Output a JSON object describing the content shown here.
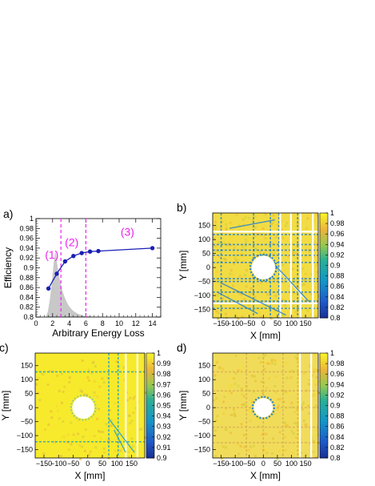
{
  "colors": {
    "region": "#ee22ee",
    "series": "#1a1fb5",
    "hist": "#c8c8c8",
    "heat_high": "#f7ef2a",
    "heat_low": "#1e3ca0"
  },
  "chart_data": [
    {
      "panel": "a)",
      "type": "line",
      "xlabel": "Arbitrary Energy Loss",
      "ylabel": "Efficiency",
      "xlim": [
        0,
        15
      ],
      "ylim": [
        0.8,
        1.0
      ],
      "xticks": [
        "0",
        "2",
        "4",
        "6",
        "8",
        "10",
        "12",
        "14"
      ],
      "yticks": [
        "0.8",
        "0.82",
        "0.84",
        "0.86",
        "0.88",
        "0.9",
        "0.92",
        "0.94",
        "0.96",
        "0.98",
        "1"
      ],
      "x": [
        1.5,
        2.5,
        3.5,
        4.5,
        5.5,
        6.5,
        7.5,
        14
      ],
      "y": [
        0.858,
        0.888,
        0.913,
        0.924,
        0.93,
        0.933,
        0.934,
        0.94
      ],
      "region_lines_x": [
        3.0,
        6.0
      ],
      "region_labels": [
        {
          "text": "(1)",
          "x": 1.9,
          "y": 0.919
        },
        {
          "text": "(2)",
          "x": 4.3,
          "y": 0.944
        },
        {
          "text": "(3)",
          "x": 11.0,
          "y": 0.965
        }
      ],
      "histogram": {
        "peak_x": 2.3,
        "peak_y": 0.943,
        "start_x": 1.2
      }
    },
    {
      "panel": "b)",
      "type": "heatmap",
      "xlabel": "X [mm]",
      "ylabel": "Y [mm]",
      "xticks": [
        "−150",
        "−100",
        "−50",
        "0",
        "50",
        "100",
        "150"
      ],
      "yticks": [
        "−150",
        "−100",
        "−50",
        "0",
        "50",
        "100",
        "150"
      ],
      "scale_ticks": [
        "0.8",
        "0.82",
        "0.84",
        "0.86",
        "0.88",
        "0.9",
        "0.92",
        "0.94",
        "0.96",
        "0.98",
        "1"
      ],
      "zlim": [
        0.8,
        1.0
      ],
      "hole_center": [
        0,
        0
      ],
      "hole_radius_mm": 42
    },
    {
      "panel": "c)",
      "type": "heatmap",
      "xlabel": "X [mm]",
      "ylabel": "Y [mm]",
      "xticks": [
        "−150",
        "−100",
        "−50",
        "0",
        "50",
        "100",
        "150"
      ],
      "yticks": [
        "−150",
        "−100",
        "−50",
        "0",
        "50",
        "100",
        "150"
      ],
      "scale_ticks": [
        "0.9",
        "0.91",
        "0.92",
        "0.93",
        "0.94",
        "0.95",
        "0.96",
        "0.97",
        "0.98",
        "0.99",
        "1"
      ],
      "zlim": [
        0.9,
        1.0
      ],
      "hole_center": [
        -15,
        0
      ],
      "hole_radius_mm": 38
    },
    {
      "panel": "d)",
      "type": "heatmap",
      "xlabel": "X [mm]",
      "ylabel": "Y [mm]",
      "xticks": [
        "−150",
        "−100",
        "−50",
        "0",
        "50",
        "100",
        "150"
      ],
      "yticks": [
        "−150",
        "−100",
        "−50",
        "0",
        "50",
        "100",
        "150"
      ],
      "scale_ticks": [
        "0.8",
        "0.82",
        "0.84",
        "0.86",
        "0.88",
        "0.9",
        "0.92",
        "0.94",
        "0.96",
        "0.98",
        "1"
      ],
      "zlim": [
        0.8,
        1.0
      ],
      "hole_center": [
        0,
        0
      ],
      "hole_radius_mm": 34
    }
  ]
}
